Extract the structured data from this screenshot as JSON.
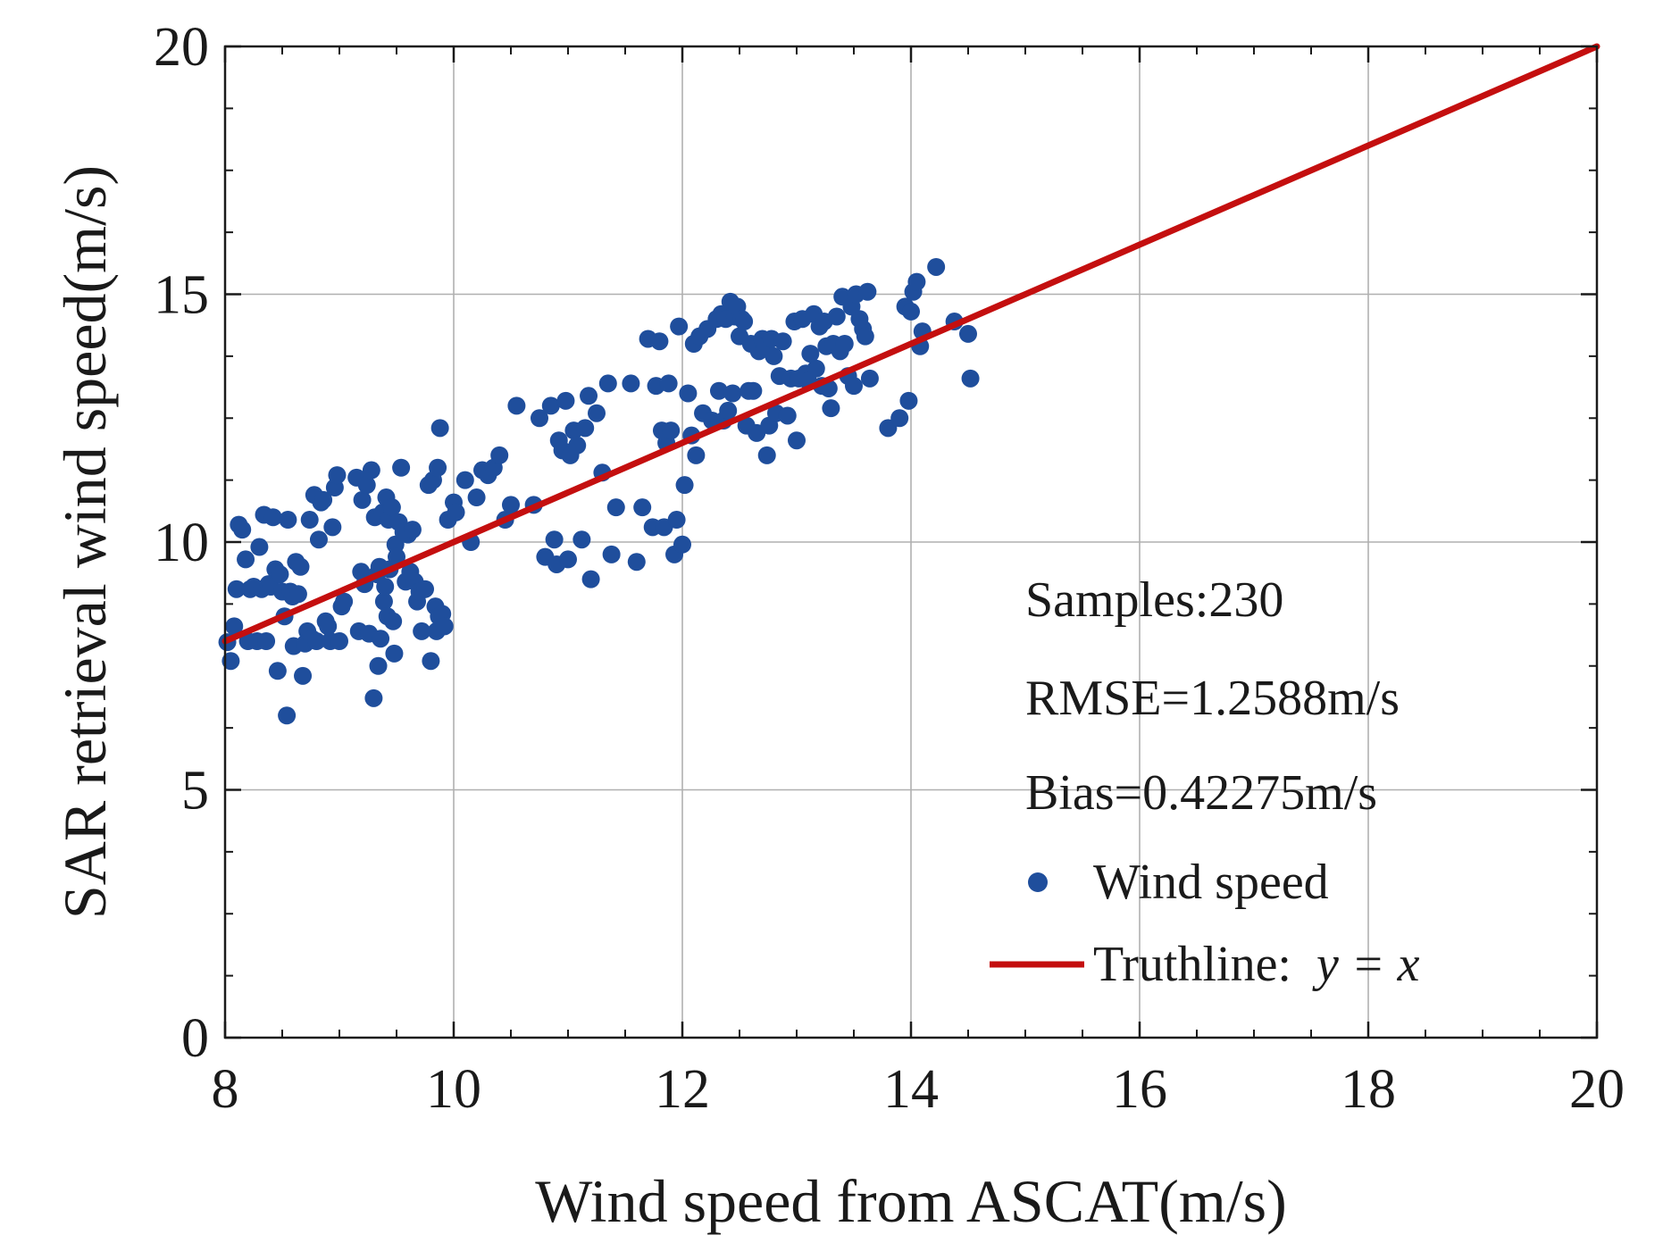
{
  "chart_data": {
    "type": "scatter",
    "xlabel": "Wind speed from ASCAT(m/s)",
    "ylabel": "SAR retrieval wind speed(m/s)",
    "xlim": [
      8,
      20
    ],
    "ylim": [
      0,
      20
    ],
    "x_major_ticks": [
      8,
      10,
      12,
      14,
      16,
      18,
      20
    ],
    "x_tick_labels": [
      "8",
      "10",
      "12",
      "14",
      "16",
      "18",
      "20"
    ],
    "y_major_ticks": [
      0,
      5,
      10,
      15,
      20
    ],
    "y_tick_labels": [
      "0",
      "5",
      "10",
      "15",
      "20"
    ],
    "grid": true,
    "colors": {
      "points": "#1f4e9c",
      "truthline": "#c40f0f",
      "grid": "#b0b0b0",
      "axis": "#1a1a1a"
    },
    "stats": {
      "samples": "Samples:230",
      "rmse": "RMSE=1.2588m/s",
      "bias": "Bias=0.42275m/s"
    },
    "legend": {
      "position": "bottom-right",
      "scatter_label": "Wind speed",
      "line_label_prefix": "Truthline: ",
      "line_label_math": "y = x"
    },
    "truthline": {
      "x": [
        8,
        20
      ],
      "y": [
        8,
        20
      ]
    },
    "series": [
      {
        "name": "Wind speed",
        "points": [
          [
            8.02,
            7.98
          ],
          [
            8.05,
            7.6
          ],
          [
            8.08,
            8.3
          ],
          [
            8.1,
            9.05
          ],
          [
            8.12,
            10.35
          ],
          [
            8.15,
            10.25
          ],
          [
            8.18,
            9.65
          ],
          [
            8.2,
            8.0
          ],
          [
            8.22,
            9.05
          ],
          [
            8.25,
            9.1
          ],
          [
            8.28,
            8.0
          ],
          [
            8.3,
            9.9
          ],
          [
            8.32,
            9.05
          ],
          [
            8.34,
            10.55
          ],
          [
            8.36,
            8.0
          ],
          [
            8.38,
            9.15
          ],
          [
            8.4,
            9.1
          ],
          [
            8.42,
            10.5
          ],
          [
            8.44,
            9.45
          ],
          [
            8.46,
            7.4
          ],
          [
            8.48,
            9.35
          ],
          [
            8.5,
            9.0
          ],
          [
            8.52,
            8.5
          ],
          [
            8.54,
            6.5
          ],
          [
            8.55,
            10.45
          ],
          [
            8.57,
            9.0
          ],
          [
            8.59,
            8.9
          ],
          [
            8.6,
            7.9
          ],
          [
            8.62,
            9.6
          ],
          [
            8.64,
            8.95
          ],
          [
            8.66,
            9.5
          ],
          [
            8.68,
            7.3
          ],
          [
            8.7,
            7.95
          ],
          [
            8.72,
            8.2
          ],
          [
            8.74,
            10.45
          ],
          [
            8.76,
            8.05
          ],
          [
            8.78,
            10.95
          ],
          [
            8.8,
            8.0
          ],
          [
            8.82,
            10.05
          ],
          [
            8.84,
            10.8
          ],
          [
            8.86,
            10.85
          ],
          [
            8.88,
            8.4
          ],
          [
            8.9,
            8.3
          ],
          [
            8.92,
            8.0
          ],
          [
            8.94,
            10.3
          ],
          [
            8.96,
            11.1
          ],
          [
            8.98,
            11.35
          ],
          [
            9.0,
            8.0
          ],
          [
            9.02,
            8.7
          ],
          [
            9.04,
            8.8
          ],
          [
            9.15,
            11.3
          ],
          [
            9.17,
            8.2
          ],
          [
            9.19,
            9.4
          ],
          [
            9.2,
            10.85
          ],
          [
            9.22,
            9.15
          ],
          [
            9.24,
            11.15
          ],
          [
            9.26,
            8.15
          ],
          [
            9.28,
            11.45
          ],
          [
            9.3,
            6.85
          ],
          [
            9.31,
            10.5
          ],
          [
            9.33,
            9.35
          ],
          [
            9.34,
            7.5
          ],
          [
            9.35,
            9.5
          ],
          [
            9.36,
            8.05
          ],
          [
            9.38,
            10.6
          ],
          [
            9.39,
            8.8
          ],
          [
            9.4,
            9.1
          ],
          [
            9.41,
            10.9
          ],
          [
            9.42,
            8.5
          ],
          [
            9.43,
            10.45
          ],
          [
            9.44,
            9.45
          ],
          [
            9.46,
            10.7
          ],
          [
            9.47,
            8.4
          ],
          [
            9.48,
            7.75
          ],
          [
            9.49,
            9.95
          ],
          [
            9.5,
            9.7
          ],
          [
            9.52,
            10.4
          ],
          [
            9.54,
            11.5
          ],
          [
            9.56,
            10.2
          ],
          [
            9.58,
            9.2
          ],
          [
            9.6,
            10.15
          ],
          [
            9.62,
            9.4
          ],
          [
            9.64,
            10.25
          ],
          [
            9.66,
            9.2
          ],
          [
            9.68,
            8.8
          ],
          [
            9.7,
            9.0
          ],
          [
            9.72,
            8.2
          ],
          [
            9.75,
            9.05
          ],
          [
            9.78,
            11.15
          ],
          [
            9.8,
            7.6
          ],
          [
            9.82,
            11.25
          ],
          [
            9.84,
            8.7
          ],
          [
            9.85,
            8.2
          ],
          [
            9.86,
            11.5
          ],
          [
            9.87,
            8.5
          ],
          [
            9.88,
            12.3
          ],
          [
            9.9,
            8.55
          ],
          [
            9.92,
            8.3
          ],
          [
            9.95,
            10.45
          ],
          [
            10.0,
            10.8
          ],
          [
            10.02,
            10.6
          ],
          [
            10.1,
            11.25
          ],
          [
            10.15,
            10.0
          ],
          [
            10.2,
            10.9
          ],
          [
            10.25,
            11.45
          ],
          [
            10.3,
            11.35
          ],
          [
            10.35,
            11.5
          ],
          [
            10.4,
            11.75
          ],
          [
            10.45,
            10.45
          ],
          [
            10.5,
            10.75
          ],
          [
            10.55,
            12.75
          ],
          [
            10.7,
            10.75
          ],
          [
            10.75,
            12.5
          ],
          [
            10.8,
            9.7
          ],
          [
            10.85,
            12.75
          ],
          [
            10.88,
            10.05
          ],
          [
            10.9,
            9.55
          ],
          [
            10.92,
            12.05
          ],
          [
            10.95,
            11.85
          ],
          [
            10.98,
            12.85
          ],
          [
            11.0,
            9.65
          ],
          [
            11.02,
            11.75
          ],
          [
            11.05,
            12.25
          ],
          [
            11.08,
            11.95
          ],
          [
            11.12,
            10.05
          ],
          [
            11.15,
            12.3
          ],
          [
            11.18,
            12.95
          ],
          [
            11.2,
            9.25
          ],
          [
            11.25,
            12.6
          ],
          [
            11.3,
            11.4
          ],
          [
            11.35,
            13.2
          ],
          [
            11.38,
            9.75
          ],
          [
            11.42,
            10.7
          ],
          [
            11.55,
            13.2
          ],
          [
            11.6,
            9.6
          ],
          [
            11.65,
            10.7
          ],
          [
            11.7,
            14.1
          ],
          [
            11.74,
            10.3
          ],
          [
            11.77,
            13.15
          ],
          [
            11.8,
            14.05
          ],
          [
            11.82,
            12.25
          ],
          [
            11.84,
            10.3
          ],
          [
            11.86,
            12.0
          ],
          [
            11.88,
            13.2
          ],
          [
            11.9,
            12.25
          ],
          [
            11.93,
            9.75
          ],
          [
            11.95,
            10.45
          ],
          [
            11.97,
            14.35
          ],
          [
            12.0,
            9.95
          ],
          [
            12.02,
            11.15
          ],
          [
            12.05,
            13.0
          ],
          [
            12.08,
            12.15
          ],
          [
            12.1,
            14.0
          ],
          [
            12.12,
            11.75
          ],
          [
            12.15,
            14.15
          ],
          [
            12.18,
            12.6
          ],
          [
            12.22,
            14.3
          ],
          [
            12.26,
            12.45
          ],
          [
            12.3,
            14.5
          ],
          [
            12.32,
            13.05
          ],
          [
            12.34,
            14.6
          ],
          [
            12.36,
            12.45
          ],
          [
            12.38,
            14.5
          ],
          [
            12.4,
            12.65
          ],
          [
            12.42,
            14.85
          ],
          [
            12.44,
            13.0
          ],
          [
            12.46,
            14.55
          ],
          [
            12.48,
            14.75
          ],
          [
            12.5,
            14.15
          ],
          [
            12.52,
            14.5
          ],
          [
            12.54,
            14.45
          ],
          [
            12.56,
            12.35
          ],
          [
            12.58,
            13.05
          ],
          [
            12.6,
            14.0
          ],
          [
            12.62,
            13.05
          ],
          [
            12.65,
            12.2
          ],
          [
            12.67,
            13.85
          ],
          [
            12.7,
            14.1
          ],
          [
            12.72,
            13.95
          ],
          [
            12.74,
            11.75
          ],
          [
            12.76,
            12.35
          ],
          [
            12.78,
            14.1
          ],
          [
            12.8,
            13.75
          ],
          [
            12.82,
            12.6
          ],
          [
            12.85,
            13.35
          ],
          [
            12.88,
            14.05
          ],
          [
            12.92,
            12.55
          ],
          [
            12.95,
            13.3
          ],
          [
            12.98,
            14.45
          ],
          [
            13.0,
            12.05
          ],
          [
            13.02,
            13.3
          ],
          [
            13.05,
            14.5
          ],
          [
            13.08,
            13.4
          ],
          [
            13.1,
            13.25
          ],
          [
            13.12,
            13.8
          ],
          [
            13.15,
            14.6
          ],
          [
            13.17,
            13.5
          ],
          [
            13.2,
            14.35
          ],
          [
            13.22,
            13.15
          ],
          [
            13.24,
            14.45
          ],
          [
            13.26,
            13.95
          ],
          [
            13.28,
            13.1
          ],
          [
            13.3,
            12.7
          ],
          [
            13.32,
            14.0
          ],
          [
            13.35,
            14.55
          ],
          [
            13.38,
            13.85
          ],
          [
            13.4,
            14.95
          ],
          [
            13.42,
            14.0
          ],
          [
            13.45,
            13.35
          ],
          [
            13.48,
            14.75
          ],
          [
            13.5,
            13.15
          ],
          [
            13.52,
            15.0
          ],
          [
            13.55,
            14.5
          ],
          [
            13.58,
            14.3
          ],
          [
            13.6,
            14.15
          ],
          [
            13.62,
            15.05
          ],
          [
            13.64,
            13.3
          ],
          [
            13.8,
            12.3
          ],
          [
            13.9,
            12.5
          ],
          [
            13.95,
            14.75
          ],
          [
            13.98,
            12.85
          ],
          [
            14.0,
            14.65
          ],
          [
            14.02,
            15.05
          ],
          [
            14.05,
            15.25
          ],
          [
            14.08,
            13.95
          ],
          [
            14.1,
            14.25
          ],
          [
            14.22,
            15.55
          ],
          [
            14.38,
            14.45
          ],
          [
            14.5,
            14.2
          ],
          [
            14.52,
            13.3
          ]
        ]
      }
    ]
  }
}
